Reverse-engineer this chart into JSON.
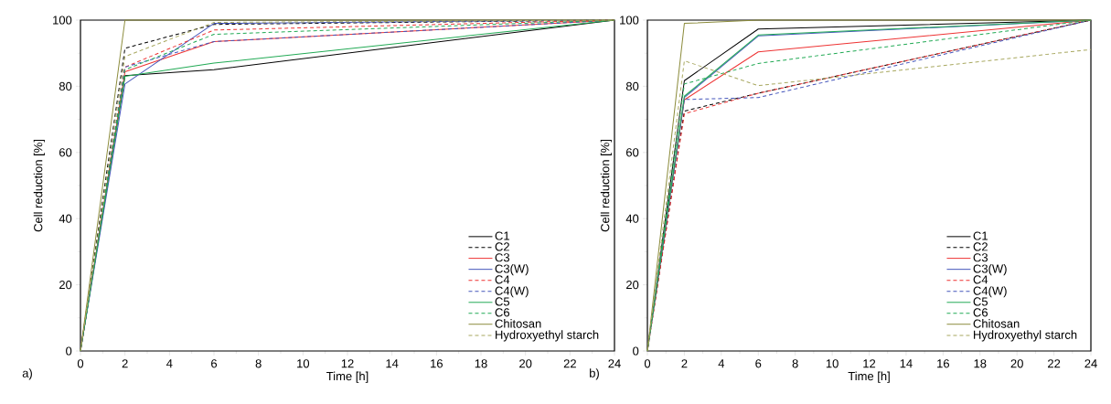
{
  "chart_data": [
    {
      "type": "line",
      "xlabel": "Time [h]",
      "ylabel": "Cell reduction [%]",
      "x": [
        0,
        2,
        6,
        24
      ],
      "xlim": [
        0,
        24
      ],
      "ylim": [
        0,
        100
      ],
      "xticks": [
        0,
        2,
        4,
        6,
        8,
        10,
        12,
        14,
        16,
        18,
        20,
        22,
        24
      ],
      "yticks": [
        0,
        20,
        40,
        60,
        80,
        100
      ],
      "legend": "bottom right",
      "annotations": [
        "a)"
      ],
      "series": [
        {
          "name": "C1",
          "color": "#000000",
          "line_style": "solid",
          "values": [
            0,
            83.2,
            85,
            100
          ]
        },
        {
          "name": "C2",
          "color": "#000000",
          "line_style": "dashed",
          "values": [
            0,
            91.5,
            98.7,
            100
          ]
        },
        {
          "name": "C3",
          "color": "#ee3333",
          "line_style": "solid",
          "values": [
            0,
            84.4,
            93.5,
            100
          ]
        },
        {
          "name": "C3(W)",
          "color": "#4455bb",
          "line_style": "solid",
          "values": [
            0,
            80.7,
            99,
            100
          ]
        },
        {
          "name": "C4",
          "color": "#ee3333",
          "line_style": "dashed",
          "values": [
            0,
            85.8,
            97,
            100
          ]
        },
        {
          "name": "C4(W)",
          "color": "#4455bb",
          "line_style": "dashed",
          "values": [
            0,
            85.8,
            93.5,
            100
          ]
        },
        {
          "name": "C5",
          "color": "#22aa55",
          "line_style": "solid",
          "values": [
            0,
            83,
            87,
            100
          ]
        },
        {
          "name": "C6",
          "color": "#22aa55",
          "line_style": "dashed",
          "values": [
            0,
            85,
            95.7,
            100
          ]
        },
        {
          "name": "Chitosan",
          "color": "#8c8c3c",
          "line_style": "solid",
          "values": [
            0,
            100,
            100,
            100
          ]
        },
        {
          "name": "Hydroxyethyl starch",
          "color": "#a8a860",
          "line_style": "dashed",
          "values": [
            0,
            89,
            99.3,
            100
          ]
        }
      ]
    },
    {
      "type": "line",
      "xlabel": "Time [h]",
      "ylabel": "Cell reduction [%]",
      "x": [
        0,
        2,
        6,
        24
      ],
      "xlim": [
        0,
        24
      ],
      "ylim": [
        0,
        100
      ],
      "xticks": [
        0,
        2,
        4,
        6,
        8,
        10,
        12,
        14,
        16,
        18,
        20,
        22,
        24
      ],
      "yticks": [
        0,
        20,
        40,
        60,
        80,
        100
      ],
      "legend": "bottom right",
      "annotations": [
        "b)"
      ],
      "series": [
        {
          "name": "C1",
          "color": "#000000",
          "line_style": "solid",
          "values": [
            0,
            81.7,
            97.3,
            100
          ]
        },
        {
          "name": "C2",
          "color": "#000000",
          "line_style": "dashed",
          "values": [
            0,
            72.5,
            77.9,
            100
          ]
        },
        {
          "name": "C3",
          "color": "#ee3333",
          "line_style": "solid",
          "values": [
            0,
            75.9,
            90.4,
            100
          ]
        },
        {
          "name": "C3(W)",
          "color": "#4455bb",
          "line_style": "solid",
          "values": [
            0,
            76.6,
            95.2,
            100
          ]
        },
        {
          "name": "C4",
          "color": "#ee3333",
          "line_style": "dashed",
          "values": [
            0,
            71.7,
            77.9,
            100
          ]
        },
        {
          "name": "C4(W)",
          "color": "#4455bb",
          "line_style": "dashed",
          "values": [
            0,
            76,
            76.6,
            100
          ]
        },
        {
          "name": "C5",
          "color": "#22aa55",
          "line_style": "solid",
          "values": [
            0,
            77,
            95.5,
            100
          ]
        },
        {
          "name": "C6",
          "color": "#22aa55",
          "line_style": "dashed",
          "values": [
            0,
            80.7,
            86.9,
            100
          ]
        },
        {
          "name": "Chitosan",
          "color": "#8c8c3c",
          "line_style": "solid",
          "values": [
            0,
            99,
            100,
            100
          ]
        },
        {
          "name": "Hydroxyethyl starch",
          "color": "#a8a860",
          "line_style": "dashed",
          "values": [
            0,
            87.7,
            80.2,
            91.1
          ]
        }
      ]
    }
  ]
}
